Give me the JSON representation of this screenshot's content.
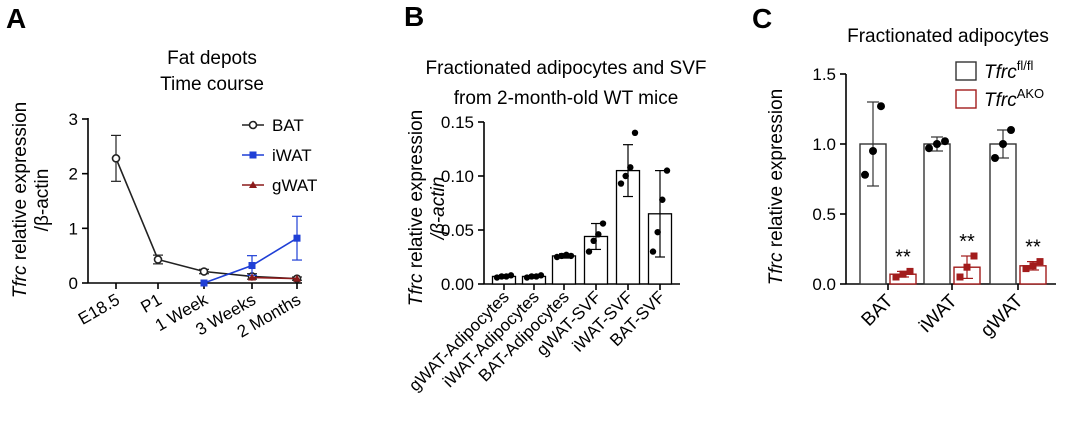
{
  "colors": {
    "BAT": "#222222",
    "iWAT": "#1f3fd6",
    "gWAT": "#8b1a1a",
    "fl": "#333333",
    "AKO": "#a21c1c"
  },
  "chart_data": [
    {
      "panel": "A",
      "type": "line",
      "title": [
        "Fat depots",
        "Time course"
      ],
      "ylabel_italic": "Tfrc",
      "ylabel_rest": " relative expression",
      "ylabel_line2": "/β-actin",
      "ylim": [
        0,
        3
      ],
      "yticks": [
        "0",
        "1",
        "2",
        "3"
      ],
      "categories": [
        "E18.5",
        "P1",
        "1 Week",
        "3 Weeks",
        "2 Months"
      ],
      "legend_position": "top-right",
      "series": [
        {
          "name": "BAT",
          "x": [
            0,
            1,
            2,
            3,
            4
          ],
          "y": [
            2.28,
            0.43,
            0.21,
            0.12,
            0.08
          ],
          "err": [
            0.42,
            0.08,
            0.04,
            0.05,
            0.03
          ],
          "marker": "circle-open"
        },
        {
          "name": "iWAT",
          "x": [
            2,
            3,
            4
          ],
          "y": [
            0.0,
            0.32,
            0.82
          ],
          "err": [
            0.0,
            0.18,
            0.4
          ],
          "marker": "square"
        },
        {
          "name": "gWAT",
          "x": [
            3,
            4
          ],
          "y": [
            0.1,
            0.08
          ],
          "err": [
            0.0,
            0.0
          ],
          "marker": "triangle"
        }
      ]
    },
    {
      "panel": "B",
      "type": "bar",
      "title": [
        "Fractionated adipocytes and SVF",
        "from 2-month-old WT mice"
      ],
      "ylabel_italic": "Tfrc",
      "ylabel_rest": " relative expression",
      "ylabel_line2": "/β-actin",
      "ylim": [
        0,
        0.15
      ],
      "yticks": [
        "0.00",
        "0.05",
        "0.10",
        "0.15"
      ],
      "categories": [
        "gWAT-Adipocytes",
        "iWAT-Adipocytes",
        "BAT-Adipocytes",
        "gWAT-SVF",
        "iWAT-SVF",
        "BAT-SVF"
      ],
      "values": [
        0.007,
        0.007,
        0.026,
        0.044,
        0.105,
        0.065
      ],
      "errors": [
        0.001,
        0.001,
        0.002,
        0.012,
        0.024,
        0.04
      ],
      "points": [
        [
          0.006,
          0.007,
          0.007,
          0.008
        ],
        [
          0.006,
          0.007,
          0.007,
          0.008
        ],
        [
          0.025,
          0.026,
          0.027,
          0.026
        ],
        [
          0.03,
          0.04,
          0.046,
          0.056
        ],
        [
          0.093,
          0.1,
          0.108,
          0.14
        ],
        [
          0.03,
          0.048,
          0.078,
          0.105
        ]
      ]
    },
    {
      "panel": "C",
      "type": "bar",
      "title": [
        "Fractionated adipocytes"
      ],
      "ylabel_italic": "Tfrc",
      "ylabel_rest": " relative expression",
      "ylim": [
        0,
        1.5
      ],
      "yticks": [
        "0.0",
        "0.5",
        "1.0",
        "1.5"
      ],
      "categories": [
        "BAT",
        "iWAT",
        "gWAT"
      ],
      "legend_position": "top-right",
      "series": [
        {
          "name_italic": "Tfrc",
          "name_sup": "fl/fl",
          "values": [
            1.0,
            1.0,
            1.0
          ],
          "errors": [
            0.3,
            0.05,
            0.1
          ],
          "points": [
            [
              0.78,
              0.95,
              1.27
            ],
            [
              0.97,
              1.0,
              1.02
            ],
            [
              0.9,
              1.0,
              1.1
            ]
          ]
        },
        {
          "name_italic": "Tfrc",
          "name_sup": "AKO",
          "values": [
            0.07,
            0.12,
            0.13
          ],
          "errors": [
            0.02,
            0.08,
            0.03
          ],
          "points": [
            [
              0.05,
              0.07,
              0.09
            ],
            [
              0.05,
              0.12,
              0.2
            ],
            [
              0.11,
              0.13,
              0.16
            ]
          ]
        }
      ],
      "annotations": [
        "**",
        "**",
        "**"
      ]
    }
  ]
}
